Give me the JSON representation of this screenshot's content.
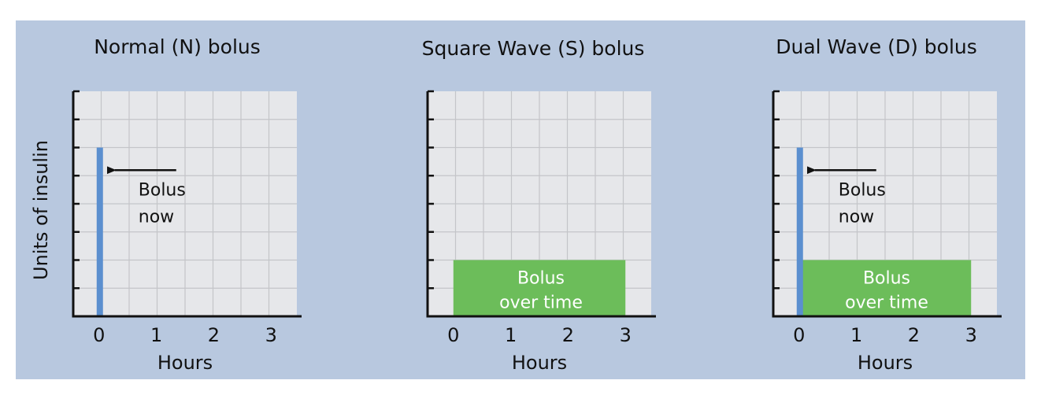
{
  "chart_data": [
    {
      "type": "bar",
      "title": "Normal (N) bolus",
      "xlabel": "Hours",
      "ylabel": "Units of insulin",
      "x_ticks": [
        "0",
        "1",
        "2",
        "3"
      ],
      "xlim": [
        -0.45,
        3.45
      ],
      "ylim": [
        0,
        8
      ],
      "grid": true,
      "spikes": [
        {
          "x": 0,
          "value": 6.0,
          "color": "#5b8fcf"
        }
      ],
      "blocks": [],
      "annotations": [
        {
          "text": [
            "Bolus",
            "now"
          ],
          "arrow": true
        }
      ]
    },
    {
      "type": "bar",
      "title": "Square Wave (S) bolus",
      "xlabel": "Hours",
      "ylabel": "",
      "x_ticks": [
        "0",
        "1",
        "2",
        "3"
      ],
      "xlim": [
        -0.45,
        3.45
      ],
      "ylim": [
        0,
        8
      ],
      "grid": true,
      "spikes": [],
      "blocks": [
        {
          "x_start": 0,
          "x_end": 3,
          "value": 2.0,
          "label": [
            "Bolus",
            "over time"
          ],
          "color": "#6cbd5a"
        }
      ],
      "annotations": []
    },
    {
      "type": "bar",
      "title": "Dual Wave (D) bolus",
      "xlabel": "Hours",
      "ylabel": "",
      "x_ticks": [
        "0",
        "1",
        "2",
        "3"
      ],
      "xlim": [
        -0.45,
        3.45
      ],
      "ylim": [
        0,
        8
      ],
      "grid": true,
      "spikes": [
        {
          "x": 0,
          "value": 6.0,
          "color": "#5b8fcf"
        }
      ],
      "blocks": [
        {
          "x_start": 0,
          "x_end": 3,
          "value": 2.0,
          "label": [
            "Bolus",
            "over time"
          ],
          "color": "#6cbd5a"
        }
      ],
      "annotations": [
        {
          "text": [
            "Bolus",
            "now"
          ],
          "arrow": true
        }
      ]
    }
  ]
}
